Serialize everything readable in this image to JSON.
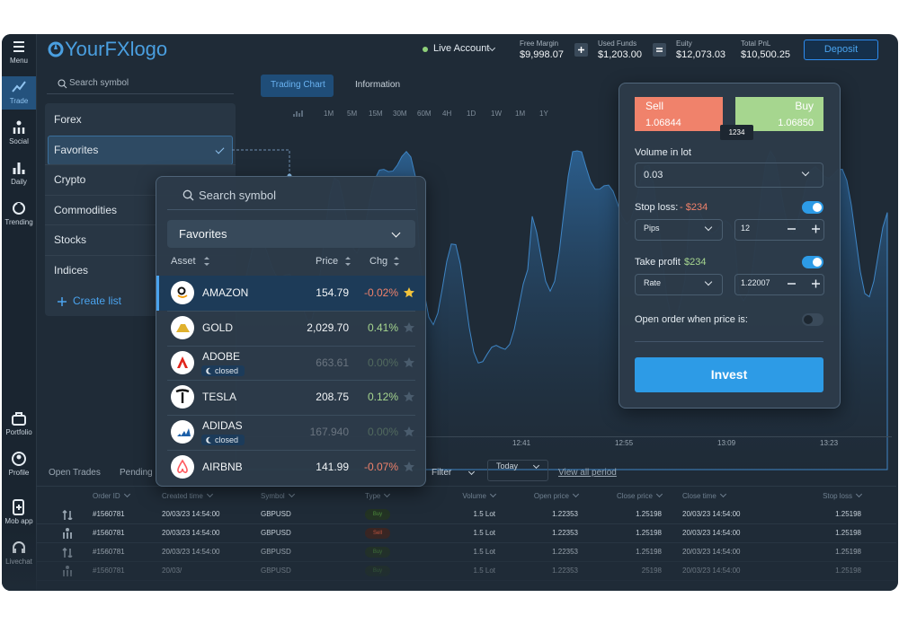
{
  "sidebar": {
    "items": [
      "Menu",
      "Trade",
      "Social",
      "Daily",
      "Trending",
      "Portfolio",
      "Profile",
      "Mob app",
      "Livechat"
    ]
  },
  "header": {
    "logo": "YourFXlogo",
    "account": "Live Account",
    "stats": [
      {
        "label": "Free Margin",
        "value": "$9,998.07"
      },
      {
        "label": "Used Funds",
        "value": "$1,203.00"
      },
      {
        "label": "Euity",
        "value": "$12,073.03"
      },
      {
        "label": "Total PnL",
        "value": "$10,500.25"
      }
    ],
    "button": "Deposit"
  },
  "symbols": {
    "search": "Search symbol",
    "categories": [
      "Forex",
      "Favorites",
      "Crypto",
      "Commodities",
      "Stocks",
      "Indices"
    ],
    "create_list": "Create list"
  },
  "chart": {
    "tabs": [
      "Trading Chart",
      "Information"
    ],
    "timeframes": [
      "1M",
      "5M",
      "15M",
      "30M",
      "60M",
      "4H",
      "1D",
      "1W",
      "1M",
      "1Y"
    ],
    "times": [
      "12:41",
      "12:55",
      "13:09",
      "13:23"
    ]
  },
  "watchlist": {
    "search": "Search symbol",
    "list": "Favorites",
    "columns": [
      "Asset",
      "Price",
      "Chg"
    ],
    "rows": [
      {
        "asset": "AMAZON",
        "price": "154.79",
        "change": "-0.02%"
      },
      {
        "asset": "GOLD",
        "price": "2,029.70",
        "change": "0.41%"
      },
      {
        "asset": "ADOBE",
        "status": "closed",
        "price": "663.61",
        "change": "0.00%"
      },
      {
        "asset": "TESLA",
        "price": "208.75",
        "change": "0.12%"
      },
      {
        "asset": "ADIDAS",
        "status": "closed",
        "price": "167.940",
        "change": "0.00%"
      },
      {
        "asset": "AIRBNB",
        "price": "141.99",
        "change": "-0.07%"
      }
    ]
  },
  "order": {
    "sell": {
      "label": "Sell",
      "price": "1.06844"
    },
    "buy": {
      "label": "Buy",
      "price": "1.06850"
    },
    "spread": "1234",
    "volume_label": "Volume in lot",
    "volume": "0.03",
    "stop_loss": {
      "label": "Stop loss:",
      "amount": "- $234",
      "unit": "Pips",
      "value": "12"
    },
    "take_profit": {
      "label": "Take profit",
      "amount": "$234",
      "unit": "Rate",
      "value": "1.22007"
    },
    "open_order": "Open order when price is:",
    "button": "Invest"
  },
  "trades": {
    "tabs": [
      "Open Trades",
      "Pending"
    ],
    "filter": "Filter",
    "period": "Today",
    "link": "View all period",
    "columns": [
      "Order ID",
      "Created time",
      "Symbol",
      "Type",
      "Volume",
      "Open price",
      "Close price",
      "Close time",
      "Stop loss"
    ],
    "rows": [
      [
        "#1560781",
        "20/03/23 14:54:00",
        "GBPUSD",
        "Buy",
        "1.5 Lot",
        "1.22353",
        "1.25198",
        "20/03/23 14:54:00",
        "1.25198"
      ],
      [
        "#1560781",
        "20/03/23 14:54:00",
        "GBPUSD",
        "Sell",
        "1.5 Lot",
        "1.22353",
        "1.25198",
        "20/03/23 14:54:00",
        "1.25198"
      ],
      [
        "#1560781",
        "20/03/23 14:54:00",
        "GBPUSD",
        "Buy",
        "1.5 Lot",
        "1.22353",
        "1.25198",
        "20/03/23 14:54:00",
        "1.25198"
      ],
      [
        "#1560781",
        "20/03/",
        "GBPUSD",
        "Buy",
        "1.5 Lot",
        "1.22353",
        "25198",
        "20/03/23 14:54:00",
        "1.25198"
      ]
    ]
  }
}
